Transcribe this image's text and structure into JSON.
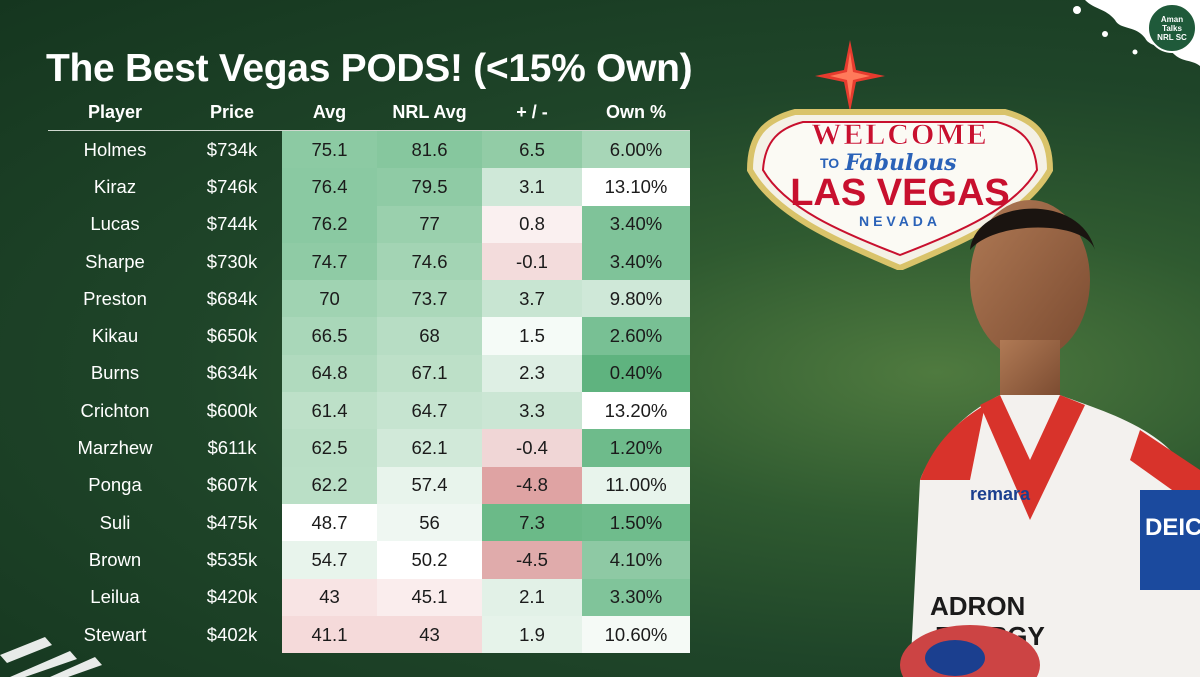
{
  "title": "The Best Vegas PODS! (<15% Own)",
  "logo": {
    "line1": "Aman",
    "line2": "Talks",
    "line3": "NRL SC"
  },
  "sign": {
    "welcome": "WELCOME",
    "to": "TO",
    "fabulous": "Fabulous",
    "las_vegas": "LAS VEGAS",
    "nevada": "NEVADA"
  },
  "jersey": {
    "brand": "remara",
    "sponsor1": "ADRON",
    "sponsor2": "ENERGY",
    "side": "DEIC"
  },
  "table": {
    "headers": [
      "Player",
      "Price",
      "Avg",
      "NRL Avg",
      "+ / -",
      "Own %"
    ],
    "rows": [
      [
        "Holmes",
        "$734k",
        "75.1",
        "81.6",
        "6.5",
        "6.00%"
      ],
      [
        "Kiraz",
        "$746k",
        "76.4",
        "79.5",
        "3.1",
        "13.10%"
      ],
      [
        "Lucas",
        "$744k",
        "76.2",
        "77",
        "0.8",
        "3.40%"
      ],
      [
        "Sharpe",
        "$730k",
        "74.7",
        "74.6",
        "-0.1",
        "3.40%"
      ],
      [
        "Preston",
        "$684k",
        "70",
        "73.7",
        "3.7",
        "9.80%"
      ],
      [
        "Kikau",
        "$650k",
        "66.5",
        "68",
        "1.5",
        "2.60%"
      ],
      [
        "Burns",
        "$634k",
        "64.8",
        "67.1",
        "2.3",
        "0.40%"
      ],
      [
        "Crichton",
        "$600k",
        "61.4",
        "64.7",
        "3.3",
        "13.20%"
      ],
      [
        "Marzhew",
        "$611k",
        "62.5",
        "62.1",
        "-0.4",
        "1.20%"
      ],
      [
        "Ponga",
        "$607k",
        "62.2",
        "57.4",
        "-4.8",
        "11.00%"
      ],
      [
        "Suli",
        "$475k",
        "48.7",
        "56",
        "7.3",
        "1.50%"
      ],
      [
        "Brown",
        "$535k",
        "54.7",
        "50.2",
        "-4.5",
        "4.10%"
      ],
      [
        "Leilua",
        "$420k",
        "43",
        "45.1",
        "2.1",
        "3.30%"
      ],
      [
        "Stewart",
        "$402k",
        "41.1",
        "43",
        "1.9",
        "10.60%"
      ]
    ],
    "cell_colors": {
      "avg": [
        "#8ccaa3",
        "#8ac9a2",
        "#8ac9a2",
        "#8fcba5",
        "#a0d3b2",
        "#a9d7b9",
        "#b0dabe",
        "#bde0c8",
        "#b9dec5",
        "#badfc6",
        "#ffffff",
        "#e8f4ec",
        "#f8e4e4",
        "#f5dada"
      ],
      "nrl_avg": [
        "#86c79e",
        "#8fcba5",
        "#9ad0ad",
        "#a3d4b4",
        "#abd8ba",
        "#b7ddc4",
        "#bde0c8",
        "#c6e4d0",
        "#d1e9d9",
        "#e8f4ec",
        "#eff7f2",
        "#ffffff",
        "#faeded",
        "#f5dada"
      ],
      "diff": [
        "#92cca6",
        "#cfe8d8",
        "#faf0f0",
        "#f3dcdc",
        "#c8e5d2",
        "#f5fbf7",
        "#deefe4",
        "#cbe6d4",
        "#f0d6d6",
        "#dfa3a3",
        "#6bba88",
        "#e0abab",
        "#e2f1e7",
        "#e6f3ea"
      ],
      "own": [
        "#a7d6b7",
        "#ffffff",
        "#7fc399",
        "#7fc399",
        "#cfe8d8",
        "#78c094",
        "#5fb37f",
        "#ffffff",
        "#6ebb8b",
        "#e8f4ec",
        "#6fbc8c",
        "#8ec9a4",
        "#80c49a",
        "#f5faf6"
      ]
    }
  }
}
